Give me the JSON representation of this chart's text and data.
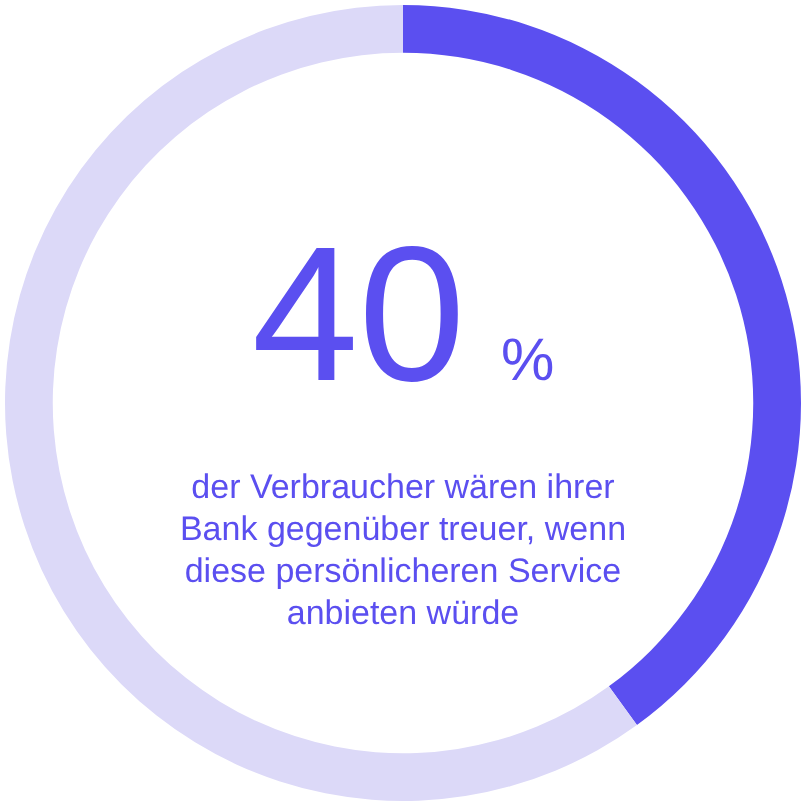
{
  "chart_data": {
    "type": "donut",
    "categories": [
      null,
      null
    ],
    "values": [
      40,
      60
    ],
    "colors": [
      "#5b4ff0",
      "#dcd9f8"
    ],
    "value_labels": [
      "40 %",
      null
    ],
    "annotations": [
      "der Verbraucher wären ihrer Bank gegenüber treuer, wenn diese persönlicheren Service anbieten würde"
    ],
    "legend": false
  }
}
